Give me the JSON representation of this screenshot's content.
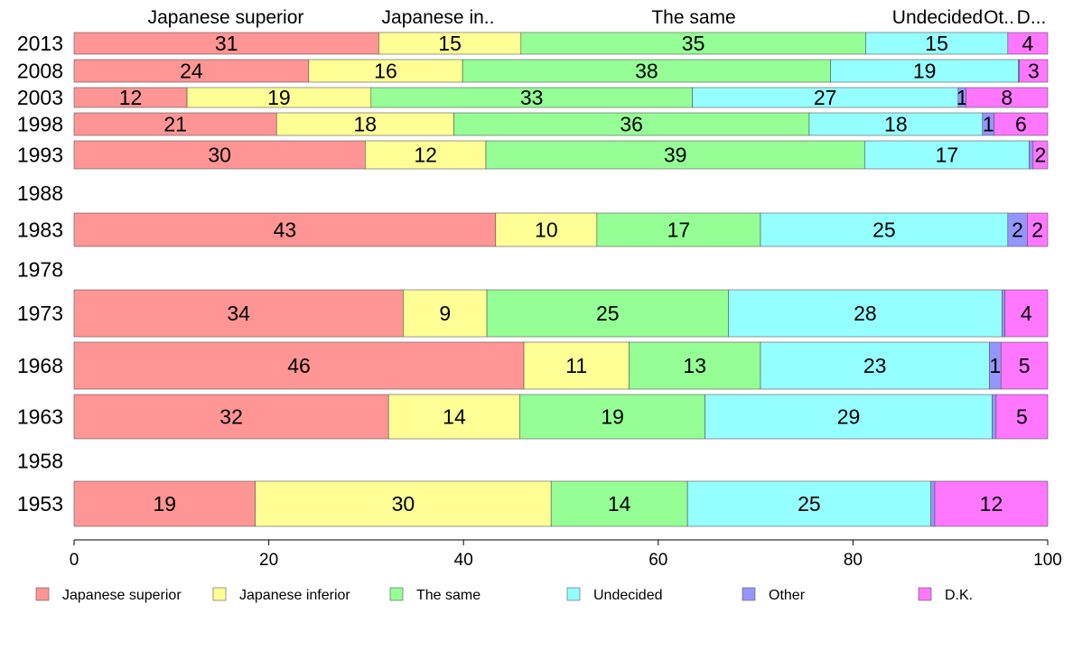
{
  "chart_data": {
    "type": "bar",
    "orientation": "horizontal",
    "stacked": true,
    "xlim": [
      0,
      100
    ],
    "x_ticks": [
      0,
      20,
      40,
      60,
      80,
      100
    ],
    "header_labels": [
      "Japanese superior",
      "Japanese in..",
      "The same",
      "Undecided",
      "Ot..",
      "D..."
    ],
    "legend_position": "bottom",
    "series": [
      {
        "name": "Japanese superior",
        "color": "#ff9595"
      },
      {
        "name": "Japanese inferior",
        "color": "#ffff95"
      },
      {
        "name": "The same",
        "color": "#95ff95"
      },
      {
        "name": "Undecided",
        "color": "#95ffff"
      },
      {
        "name": "Other",
        "color": "#9595ff"
      },
      {
        "name": "D.K.",
        "color": "#ff77ff"
      }
    ],
    "rows": [
      {
        "year": "2013",
        "values": [
          31.3,
          14.6,
          35.4,
          14.6,
          0,
          4.1
        ],
        "labels": [
          "31",
          "15",
          "35",
          "15",
          "",
          "4"
        ]
      },
      {
        "year": "2008",
        "values": [
          24.1,
          15.8,
          37.8,
          19.3,
          0.1,
          2.9
        ],
        "labels": [
          "24",
          "16",
          "38",
          "19",
          "",
          "3"
        ]
      },
      {
        "year": "2003",
        "values": [
          11.6,
          18.9,
          33.0,
          27.3,
          0.8,
          8.4
        ],
        "labels": [
          "12",
          "19",
          "33",
          "27",
          "1",
          "8"
        ]
      },
      {
        "year": "1998",
        "values": [
          20.8,
          18.2,
          36.5,
          17.8,
          1.2,
          5.5
        ],
        "labels": [
          "21",
          "18",
          "36",
          "18",
          "1",
          "6"
        ]
      },
      {
        "year": "1993",
        "values": [
          29.9,
          12.4,
          38.9,
          16.9,
          0.4,
          1.5
        ],
        "labels": [
          "30",
          "12",
          "39",
          "17",
          "",
          "2"
        ]
      },
      {
        "year": "1988",
        "values": [],
        "labels": []
      },
      {
        "year": "1983",
        "values": [
          43.3,
          10.4,
          16.8,
          25.4,
          2.0,
          2.1
        ],
        "labels": [
          "43",
          "10",
          "17",
          "25",
          "2",
          "2"
        ]
      },
      {
        "year": "1978",
        "values": [],
        "labels": []
      },
      {
        "year": "1973",
        "values": [
          33.8,
          8.6,
          24.8,
          28.1,
          0.3,
          4.4
        ],
        "labels": [
          "34",
          "9",
          "25",
          "28",
          "",
          "4"
        ]
      },
      {
        "year": "1968",
        "values": [
          46.2,
          10.8,
          13.5,
          23.5,
          1.2,
          4.8
        ],
        "labels": [
          "46",
          "11",
          "13",
          "23",
          "1",
          "5"
        ]
      },
      {
        "year": "1963",
        "values": [
          32.3,
          13.5,
          19.0,
          29.5,
          0.4,
          5.3
        ],
        "labels": [
          "32",
          "14",
          "19",
          "29",
          "",
          "5"
        ]
      },
      {
        "year": "1958",
        "values": [],
        "labels": []
      },
      {
        "year": "1953",
        "values": [
          18.6,
          30.4,
          14.0,
          25.0,
          0.4,
          11.6
        ],
        "labels": [
          "19",
          "30",
          "14",
          "25",
          "",
          "12"
        ]
      }
    ]
  }
}
